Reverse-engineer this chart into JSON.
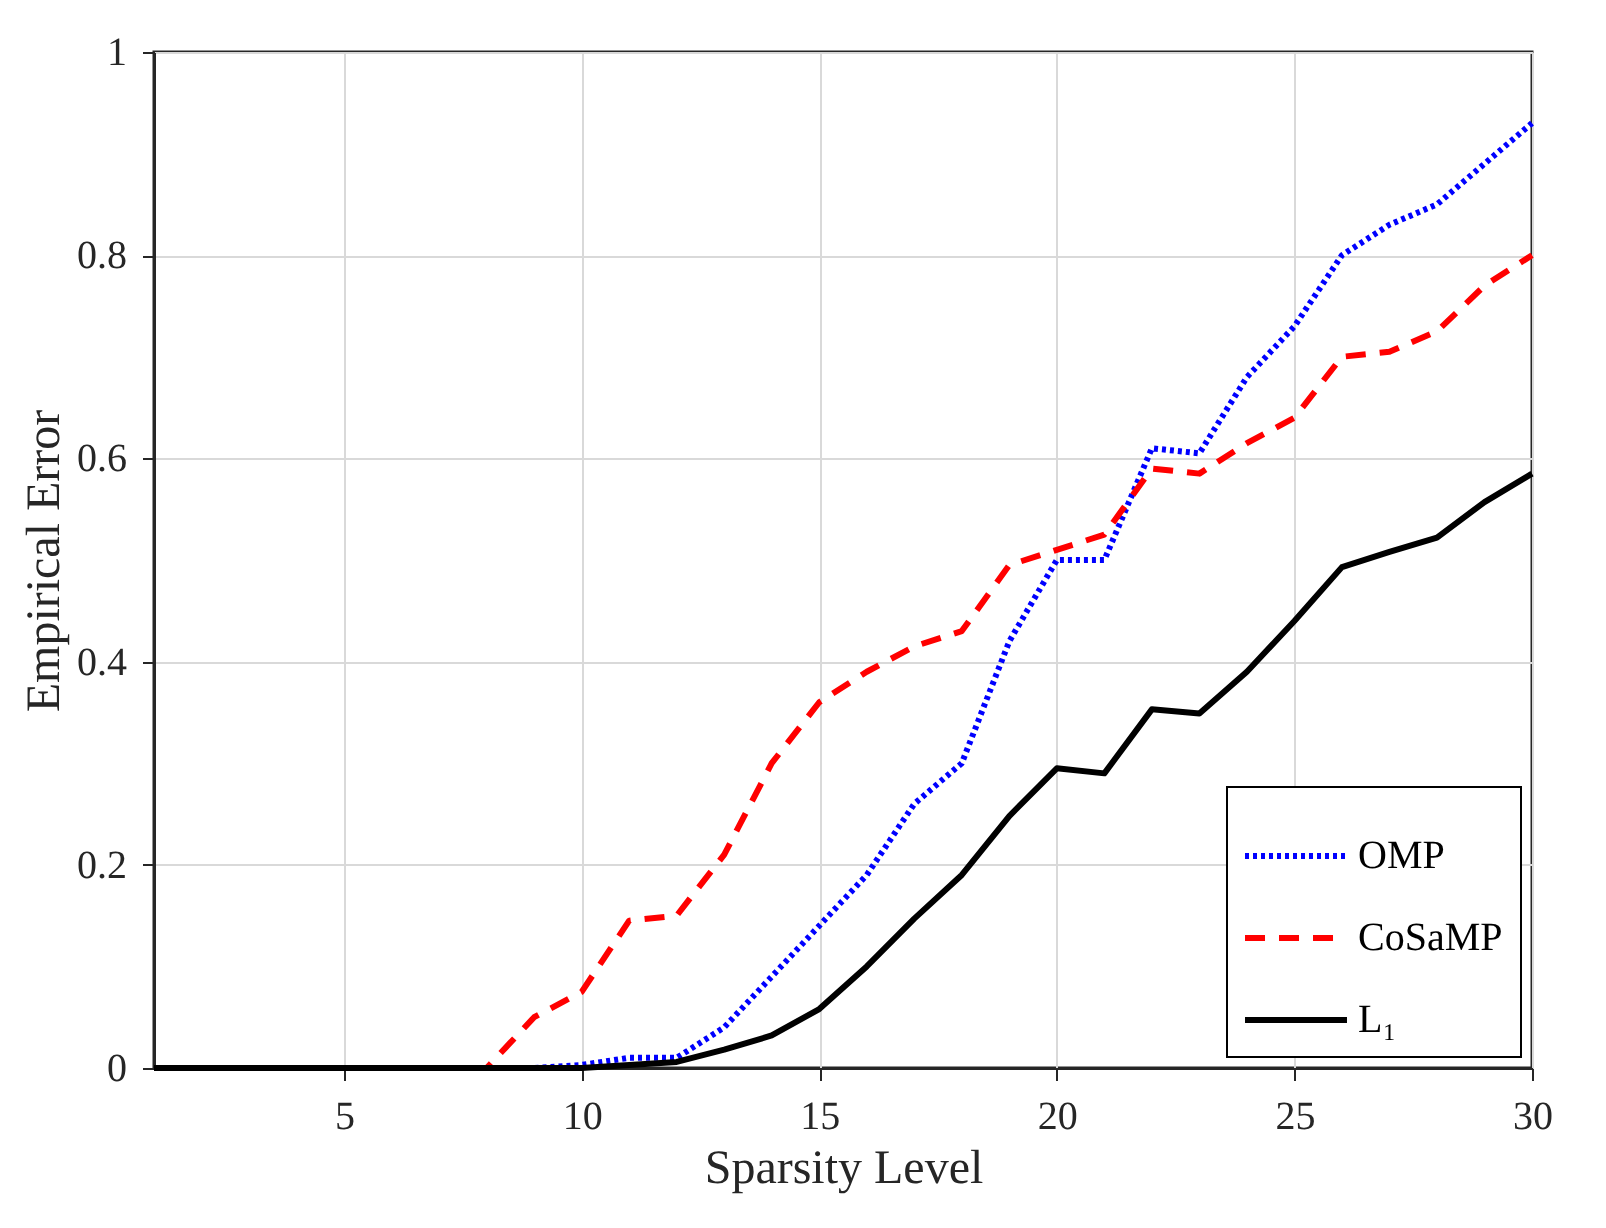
{
  "chart_data": {
    "type": "line",
    "xlabel": "Sparsity Level",
    "ylabel": "Empirical Error",
    "x": [
      1,
      2,
      3,
      4,
      5,
      6,
      7,
      8,
      9,
      10,
      11,
      12,
      13,
      14,
      15,
      16,
      17,
      18,
      19,
      20,
      21,
      22,
      23,
      24,
      25,
      26,
      27,
      28,
      29,
      30
    ],
    "series": [
      {
        "name": "OMP",
        "color": "#0000ff",
        "line_style": "dotted",
        "values": [
          null,
          null,
          null,
          null,
          null,
          null,
          null,
          0,
          0,
          0.003,
          0.01,
          0.01,
          0.04,
          0.09,
          0.14,
          0.19,
          0.26,
          0.3,
          0.42,
          0.5,
          0.5,
          0.61,
          0.605,
          0.68,
          0.73,
          0.8,
          0.83,
          0.85,
          0.89,
          0.93
        ]
      },
      {
        "name": "CoSaMP",
        "color": "#ff0000",
        "line_style": "dashed",
        "values": [
          null,
          null,
          null,
          null,
          null,
          null,
          0,
          0,
          0.05,
          0.075,
          0.145,
          0.15,
          0.21,
          0.3,
          0.36,
          0.39,
          0.415,
          0.43,
          0.495,
          0.51,
          0.525,
          0.59,
          0.585,
          0.615,
          0.64,
          0.7,
          0.705,
          0.725,
          0.77,
          0.8
        ]
      },
      {
        "name": "L₁",
        "color": "#000000",
        "line_style": "solid",
        "values": [
          0,
          0,
          0,
          0,
          0,
          0,
          0,
          0,
          0,
          0,
          0.003,
          0.006,
          0.018,
          0.032,
          0.058,
          0.1,
          0.147,
          0.19,
          0.248,
          0.295,
          0.29,
          0.353,
          0.349,
          0.39,
          0.44,
          0.493,
          0.508,
          0.522,
          0.557,
          0.585
        ]
      }
    ],
    "xlim": [
      1,
      30
    ],
    "xticks": [
      5,
      10,
      15,
      20,
      25,
      30
    ],
    "ylim": [
      0,
      1
    ],
    "yticks": [
      0,
      0.2,
      0.4,
      0.6,
      0.8,
      1
    ],
    "grid": true,
    "legend": "bottom right"
  }
}
